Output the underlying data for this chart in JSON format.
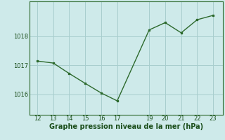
{
  "x": [
    12,
    13,
    14,
    15,
    16,
    17,
    19,
    20,
    21,
    22,
    23
  ],
  "y": [
    1017.15,
    1017.08,
    1016.72,
    1016.38,
    1016.05,
    1015.78,
    1018.22,
    1018.47,
    1018.12,
    1018.57,
    1018.72
  ],
  "line_color": "#2d6a2d",
  "marker": "s",
  "marker_size": 2.0,
  "bg_color": "#ceeaea",
  "grid_color": "#a8cece",
  "xlabel": "Graphe pression niveau de la mer (hPa)",
  "xlabel_fontsize": 7.0,
  "xlabel_color": "#1a4d1a",
  "xlabel_fontweight": "bold",
  "xticks": [
    12,
    13,
    14,
    15,
    16,
    17,
    19,
    20,
    21,
    22,
    23
  ],
  "yticks": [
    1016,
    1017,
    1018
  ],
  "ylim": [
    1015.3,
    1019.2
  ],
  "xlim": [
    11.5,
    23.6
  ],
  "tick_fontsize": 6.0,
  "tick_color": "#1a4d1a",
  "line_width": 1.0,
  "spine_color": "#2d6a2d"
}
